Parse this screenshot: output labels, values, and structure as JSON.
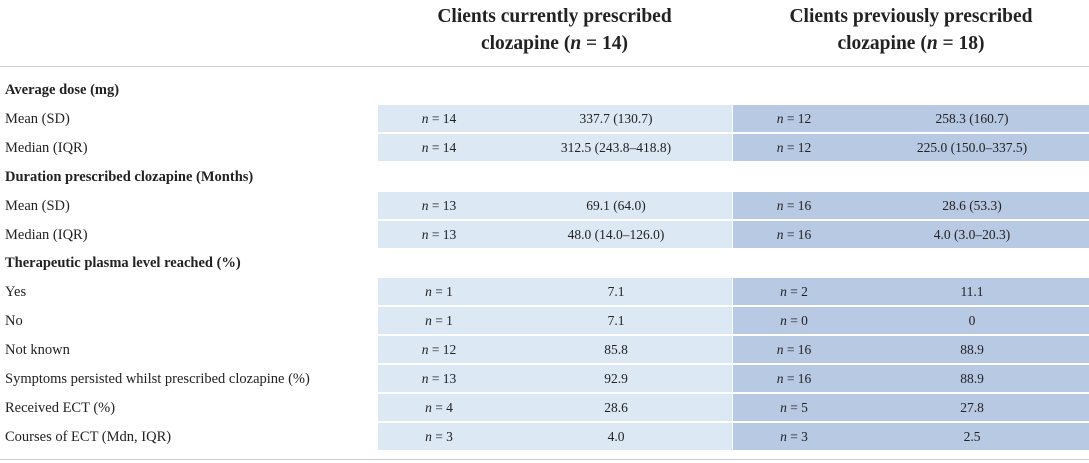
{
  "headers": {
    "col1_line1": "Clients currently prescribed",
    "col1_line2_pre": "clozapine (",
    "col1_n": "n",
    "col1_eq": " = 14)",
    "col2_line1": "Clients previously prescribed",
    "col2_line2_pre": "clozapine (",
    "col2_n": "n",
    "col2_eq": " = 18)"
  },
  "rows": [
    {
      "type": "section",
      "label": "Average dose (mg)"
    },
    {
      "type": "data",
      "label": "Mean (SD)",
      "n1": "= 14",
      "v1": "337.7 (130.7)",
      "n2": "= 12",
      "v2": "258.3 (160.7)"
    },
    {
      "type": "data",
      "label": "Median (IQR)",
      "n1": "= 14",
      "v1": "312.5 (243.8–418.8)",
      "n2": "= 12",
      "v2": "225.0 (150.0–337.5)"
    },
    {
      "type": "section",
      "label": "Duration prescribed clozapine (Months)"
    },
    {
      "type": "data",
      "label": "Mean (SD)",
      "n1": "= 13",
      "v1": "69.1 (64.0)",
      "n2": "= 16",
      "v2": "28.6 (53.3)"
    },
    {
      "type": "data",
      "label": "Median (IQR)",
      "n1": "= 13",
      "v1": "48.0 (14.0–126.0)",
      "n2": "= 16",
      "v2": "4.0 (3.0–20.3)"
    },
    {
      "type": "section",
      "label": "Therapeutic plasma level reached (%)"
    },
    {
      "type": "data",
      "label": "Yes",
      "n1": "= 1",
      "v1": "7.1",
      "n2": "= 2",
      "v2": "11.1"
    },
    {
      "type": "data",
      "label": "No",
      "n1": "= 1",
      "v1": "7.1",
      "n2": "= 0",
      "v2": "0"
    },
    {
      "type": "data",
      "label": "Not known",
      "n1": "= 12",
      "v1": "85.8",
      "n2": "= 16",
      "v2": "88.9"
    },
    {
      "type": "data",
      "label": "Symptoms persisted whilst prescribed clozapine (%)",
      "n1": "= 13",
      "v1": "92.9",
      "n2": "= 16",
      "v2": "88.9"
    },
    {
      "type": "data",
      "label": "Received ECT (%)",
      "n1": "= 4",
      "v1": "28.6",
      "n2": "= 5",
      "v2": "27.8"
    },
    {
      "type": "data",
      "label": "Courses of ECT (Mdn, IQR)",
      "n1": "= 3",
      "v1": "4.0",
      "n2": "= 3",
      "v2": "2.5"
    }
  ],
  "n_symbol": "n",
  "colors": {
    "current_bg": "#dce8f4",
    "previous_bg": "#b8c9e3"
  }
}
